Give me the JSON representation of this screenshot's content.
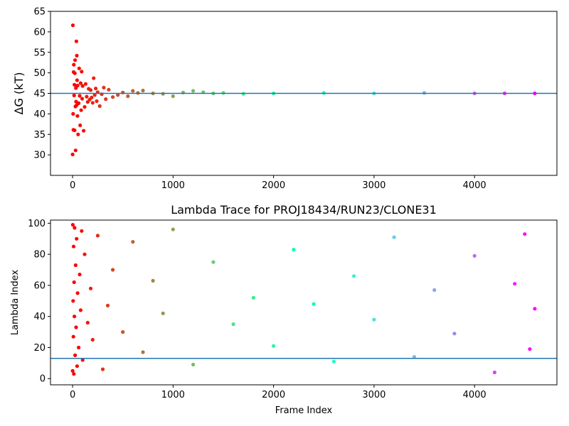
{
  "chart_data": [
    {
      "type": "scatter",
      "title": "",
      "xlabel": "",
      "ylabel": "ΔG (kT)",
      "xlim": [
        -220,
        4820
      ],
      "ylim": [
        25,
        65
      ],
      "xticks": [
        0,
        1000,
        2000,
        3000,
        4000
      ],
      "yticks": [
        30,
        35,
        40,
        45,
        50,
        55,
        60,
        65
      ],
      "grid": false,
      "colormap": "rainbow",
      "reference_line": {
        "y": 45,
        "color": "#1f77b4"
      },
      "x_range": [
        0,
        4600
      ],
      "trend": "ΔG converges from a wide spread (≈30–62) near frame 0 to ≈45 by frame ~1500",
      "series": [
        {
          "points": [
            [
              0,
              30.1
            ],
            [
              3,
              61.6
            ],
            [
              5,
              40.0
            ],
            [
              8,
              36.1
            ],
            [
              10,
              50.2
            ],
            [
              12,
              52.0
            ],
            [
              15,
              44.5
            ],
            [
              18,
              47.1
            ],
            [
              20,
              36.0
            ],
            [
              22,
              49.9
            ],
            [
              25,
              53.1
            ],
            [
              28,
              41.8
            ],
            [
              30,
              31.1
            ],
            [
              33,
              46.3
            ],
            [
              35,
              43.0
            ],
            [
              38,
              57.7
            ],
            [
              40,
              42.1
            ],
            [
              42,
              54.2
            ],
            [
              45,
              48.2
            ],
            [
              48,
              39.5
            ],
            [
              50,
              46.9
            ],
            [
              55,
              35.0
            ],
            [
              60,
              42.6
            ],
            [
              65,
              51.1
            ],
            [
              70,
              44.4
            ],
            [
              75,
              37.2
            ],
            [
              80,
              47.5
            ],
            [
              85,
              40.9
            ],
            [
              90,
              50.3
            ],
            [
              95,
              43.7
            ],
            [
              100,
              46.8
            ],
            [
              110,
              35.9
            ],
            [
              120,
              41.7
            ],
            [
              130,
              47.3
            ],
            [
              140,
              44.2
            ],
            [
              150,
              42.9
            ],
            [
              160,
              46.1
            ],
            [
              170,
              43.5
            ],
            [
              180,
              45.8
            ],
            [
              190,
              44.0
            ],
            [
              200,
              42.7
            ],
            [
              210,
              48.7
            ],
            [
              220,
              44.6
            ],
            [
              230,
              46.2
            ],
            [
              240,
              43.1
            ],
            [
              250,
              45.3
            ],
            [
              270,
              41.9
            ],
            [
              290,
              44.8
            ],
            [
              310,
              46.4
            ],
            [
              330,
              43.6
            ],
            [
              360,
              45.9
            ],
            [
              400,
              44.1
            ],
            [
              450,
              44.6
            ],
            [
              500,
              45.2
            ],
            [
              550,
              44.3
            ],
            [
              600,
              45.6
            ],
            [
              650,
              45.1
            ],
            [
              700,
              45.7
            ],
            [
              800,
              45.0
            ],
            [
              900,
              44.9
            ],
            [
              1000,
              44.3
            ],
            [
              1100,
              45.2
            ],
            [
              1200,
              45.6
            ],
            [
              1300,
              45.3
            ],
            [
              1400,
              45.0
            ],
            [
              1500,
              45.1
            ],
            [
              1700,
              44.9
            ],
            [
              2000,
              45.0
            ],
            [
              2500,
              45.1
            ],
            [
              3000,
              45.0
            ],
            [
              3500,
              45.1
            ],
            [
              4000,
              45.0
            ],
            [
              4300,
              45.0
            ],
            [
              4600,
              45.0
            ]
          ]
        }
      ]
    },
    {
      "type": "scatter",
      "title": "Lambda Trace for PROJ18434/RUN23/CLONE31",
      "xlabel": "Frame Index",
      "ylabel": "Lambda Index",
      "xlim": [
        -220,
        4820
      ],
      "ylim": [
        -4,
        102
      ],
      "xticks": [
        0,
        1000,
        2000,
        3000,
        4000
      ],
      "yticks": [
        0,
        20,
        40,
        60,
        80,
        100
      ],
      "grid": false,
      "colormap": "rainbow",
      "reference_line": {
        "y": 13,
        "color": "#1f77b4"
      },
      "x_range": [
        0,
        4600
      ],
      "y_range": [
        0,
        99
      ],
      "series": [
        {
          "points": [
            [
              0,
              5
            ],
            [
              2,
              99
            ],
            [
              5,
              50
            ],
            [
              8,
              27
            ],
            [
              10,
              85
            ],
            [
              12,
              3
            ],
            [
              15,
              62
            ],
            [
              18,
              40
            ],
            [
              20,
              97
            ],
            [
              25,
              15
            ],
            [
              30,
              73
            ],
            [
              35,
              33
            ],
            [
              40,
              90
            ],
            [
              45,
              8
            ],
            [
              50,
              55
            ],
            [
              60,
              20
            ],
            [
              70,
              67
            ],
            [
              80,
              44
            ],
            [
              90,
              95
            ],
            [
              100,
              12
            ],
            [
              120,
              80
            ],
            [
              150,
              36
            ],
            [
              180,
              58
            ],
            [
              200,
              25
            ],
            [
              250,
              92
            ],
            [
              300,
              6
            ],
            [
              350,
              47
            ],
            [
              400,
              70
            ],
            [
              500,
              30
            ],
            [
              600,
              88
            ],
            [
              700,
              17
            ],
            [
              800,
              63
            ],
            [
              900,
              42
            ],
            [
              1000,
              96
            ],
            [
              1200,
              9
            ],
            [
              1400,
              75
            ],
            [
              1600,
              35
            ],
            [
              1800,
              52
            ],
            [
              2000,
              21
            ],
            [
              2200,
              83
            ],
            [
              2400,
              48
            ],
            [
              2600,
              11
            ],
            [
              2800,
              66
            ],
            [
              3000,
              38
            ],
            [
              3200,
              91
            ],
            [
              3400,
              14
            ],
            [
              3600,
              57
            ],
            [
              3800,
              29
            ],
            [
              4000,
              79
            ],
            [
              4200,
              4
            ],
            [
              4400,
              61
            ],
            [
              4500,
              93
            ],
            [
              4550,
              19
            ],
            [
              4600,
              45
            ]
          ]
        }
      ]
    }
  ]
}
